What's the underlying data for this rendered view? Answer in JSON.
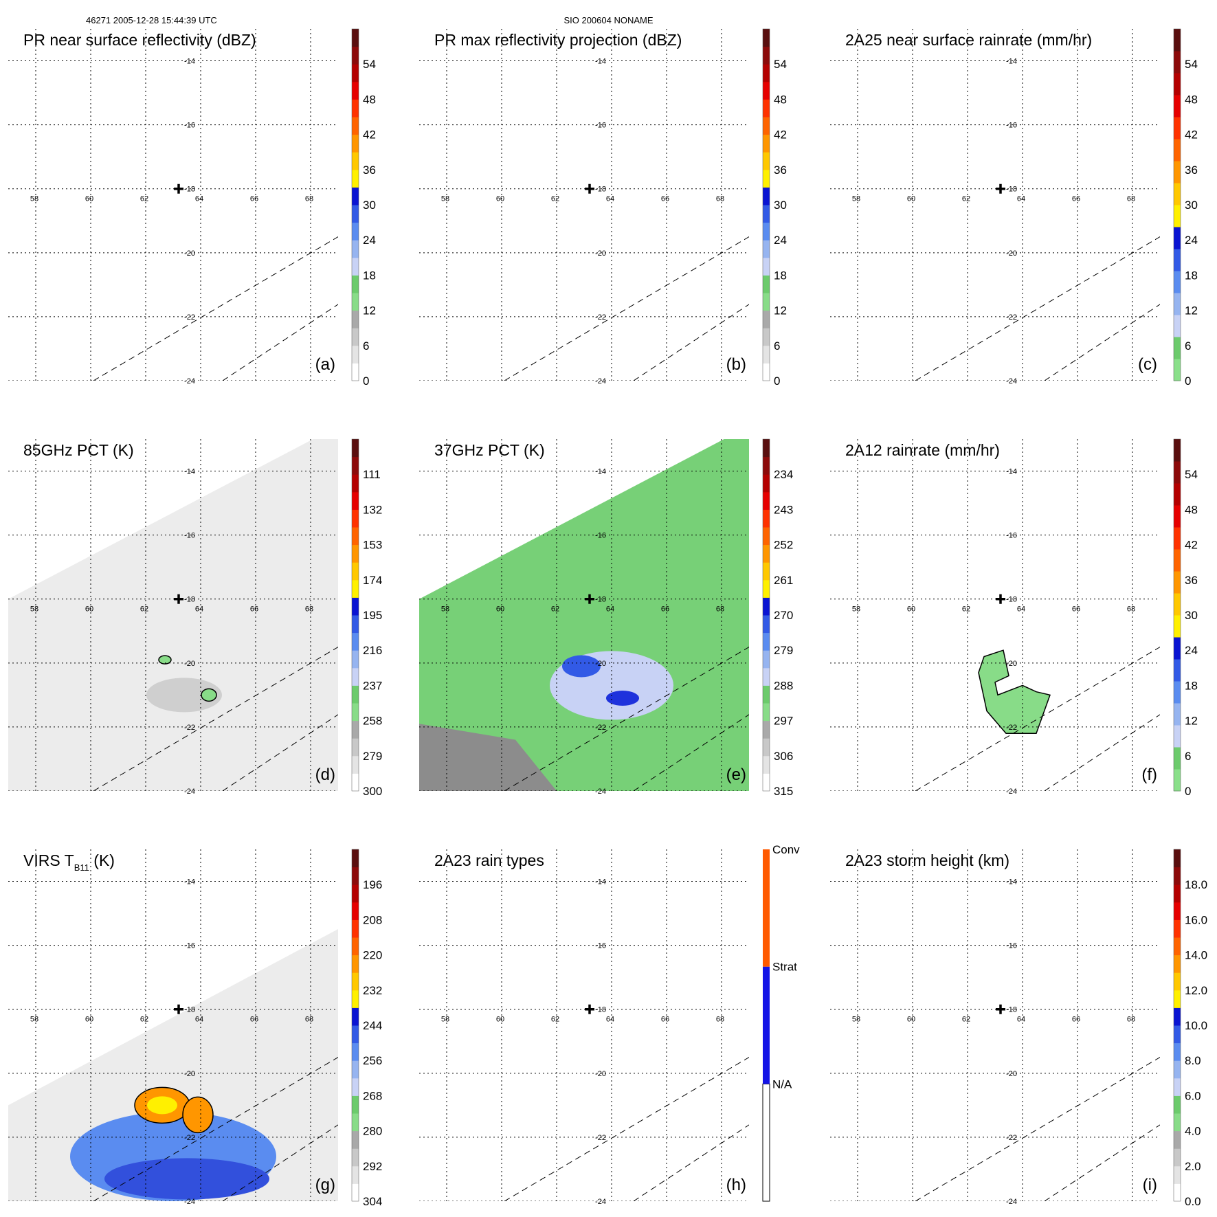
{
  "header": {
    "left": "46271 2005-12-28 15:44:39 UTC",
    "center": "SIO 200604 NONAME"
  },
  "grid": {
    "lon_labels": [
      "58",
      "60",
      "62",
      "64",
      "66",
      "68"
    ],
    "lat_labels": [
      "-14",
      "-16",
      "-18",
      "-20",
      "-22",
      "-24"
    ]
  },
  "storm_center": {
    "lon": 63.2,
    "lat": -18.0
  },
  "colors": {
    "dbz_scale": [
      "#ffffff",
      "#e4e4e4",
      "#c8c8c8",
      "#a9a9a9",
      "#88dc88",
      "#6ccb6c",
      "#c8d2f5",
      "#96b4f0",
      "#5a8cf0",
      "#325ae6",
      "#0a14d2",
      "#fff000",
      "#ffc800",
      "#ff9600",
      "#ff6400",
      "#ff3200",
      "#e60000",
      "#b40000",
      "#8c0a0a",
      "#5a0f0f"
    ],
    "rain_scale": [
      "#8ae08a",
      "#6ccb6c",
      "#c8d2f5",
      "#96b4f0",
      "#5a8cf0",
      "#325ae6",
      "#0a14d2",
      "#fff000",
      "#ffc800",
      "#ff9600",
      "#ff6400",
      "#ff3200",
      "#e60000",
      "#b40000",
      "#8c0a0a",
      "#5a0f0f"
    ],
    "rain_types": [
      "#ffffff",
      "#1414e6",
      "#ff5a00"
    ]
  },
  "chart_data": [
    {
      "id": "a",
      "type": "heatmap",
      "title": "PR near surface reflectivity (dBZ)",
      "panel_label": "(a)",
      "colorbar": {
        "min": 0,
        "max": 60,
        "ticks": [
          "54",
          "48",
          "42",
          "36",
          "30",
          "24",
          "18",
          "12",
          "6",
          "0"
        ]
      },
      "lon_range": [
        57,
        69
      ],
      "lat_range": [
        -24,
        -13
      ],
      "swath": false
    },
    {
      "id": "b",
      "type": "heatmap",
      "title": "PR max reflectivity projection (dBZ)",
      "panel_label": "(b)",
      "colorbar": {
        "min": 0,
        "max": 60,
        "ticks": [
          "54",
          "48",
          "42",
          "36",
          "30",
          "24",
          "18",
          "12",
          "6",
          "0"
        ]
      },
      "lon_range": [
        57,
        69
      ],
      "lat_range": [
        -24,
        -13
      ],
      "swath": false
    },
    {
      "id": "c",
      "type": "heatmap",
      "title": "2A25 near surface rainrate (mm/hr)",
      "panel_label": "(c)",
      "colorbar": {
        "min": 0,
        "max": 60,
        "ticks": [
          "54",
          "48",
          "42",
          "36",
          "30",
          "24",
          "18",
          "12",
          "6",
          "0"
        ]
      },
      "lon_range": [
        57,
        69
      ],
      "lat_range": [
        -24,
        -13
      ],
      "swath": false
    },
    {
      "id": "d",
      "type": "heatmap",
      "title": "85GHz PCT (K)",
      "panel_label": "(d)",
      "colorbar": {
        "min": 300,
        "max": 90,
        "ticks": [
          "111",
          "132",
          "153",
          "174",
          "195",
          "216",
          "237",
          "258",
          "279",
          "300"
        ]
      },
      "lon_range": [
        57,
        69
      ],
      "lat_range": [
        -24,
        -13
      ],
      "swath": true
    },
    {
      "id": "e",
      "type": "heatmap",
      "title": "37GHz PCT (K)",
      "panel_label": "(e)",
      "colorbar": {
        "min": 315,
        "max": 225,
        "ticks": [
          "234",
          "243",
          "252",
          "261",
          "270",
          "279",
          "288",
          "297",
          "306",
          "315"
        ]
      },
      "lon_range": [
        57,
        69
      ],
      "lat_range": [
        -24,
        -13
      ],
      "swath": true
    },
    {
      "id": "f",
      "type": "heatmap",
      "title": "2A12 rainrate (mm/hr)",
      "panel_label": "(f)",
      "colorbar": {
        "min": 0,
        "max": 60,
        "ticks": [
          "54",
          "48",
          "42",
          "36",
          "30",
          "24",
          "18",
          "12",
          "6",
          "0"
        ]
      },
      "lon_range": [
        57,
        69
      ],
      "lat_range": [
        -24,
        -13
      ],
      "swath": false
    },
    {
      "id": "g",
      "type": "heatmap",
      "title": "VIRS T",
      "title_sub": "B11",
      "title_suffix": " (K)",
      "panel_label": "(g)",
      "colorbar": {
        "min": 304,
        "max": 184,
        "ticks": [
          "196",
          "208",
          "220",
          "232",
          "244",
          "256",
          "268",
          "280",
          "292",
          "304"
        ]
      },
      "lon_range": [
        57,
        69
      ],
      "lat_range": [
        -24,
        -13
      ],
      "swath": true
    },
    {
      "id": "h",
      "type": "heatmap",
      "title": "2A23 rain types",
      "panel_label": "(h)",
      "colorbar": {
        "categories": [
          "Conv",
          "Strat",
          "N/A"
        ]
      },
      "lon_range": [
        57,
        69
      ],
      "lat_range": [
        -24,
        -13
      ],
      "swath": false
    },
    {
      "id": "i",
      "type": "heatmap",
      "title": "2A23 storm height (km)",
      "panel_label": "(i)",
      "colorbar": {
        "min": 0,
        "max": 20,
        "ticks": [
          "18.0",
          "16.0",
          "14.0",
          "12.0",
          "10.0",
          "8.0",
          "6.0",
          "4.0",
          "2.0",
          "0.0"
        ]
      },
      "lon_range": [
        57,
        69
      ],
      "lat_range": [
        -24,
        -13
      ],
      "swath": false
    }
  ]
}
